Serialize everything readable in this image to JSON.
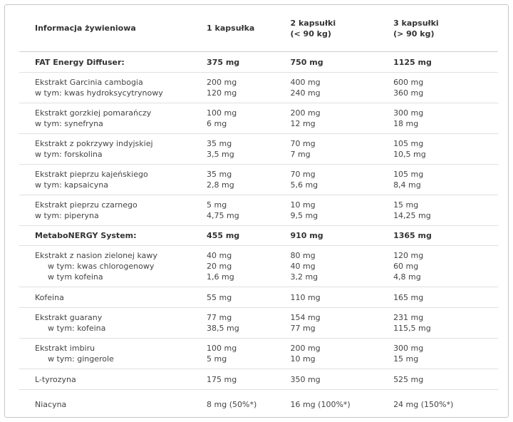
{
  "table": {
    "header": [
      [
        "Informacja żywieniowa"
      ],
      [
        "1 kapsułka"
      ],
      [
        "2 kapsułki",
        "(< 90 kg)"
      ],
      [
        "3 kapsułki",
        "(> 90 kg)"
      ]
    ],
    "rows": [
      {
        "bold": true,
        "cells": [
          [
            "FAT Energy Diffuser:"
          ],
          [
            "375 mg"
          ],
          [
            "750  mg"
          ],
          [
            "1125 mg"
          ]
        ]
      },
      {
        "cells": [
          [
            "Ekstrakt Garcinia cambogia",
            "w tym: kwas hydroksycytrynowy"
          ],
          [
            "200 mg",
            "120 mg"
          ],
          [
            "400 mg",
            "240 mg"
          ],
          [
            "600 mg",
            "360 mg"
          ]
        ]
      },
      {
        "cells": [
          [
            "Ekstrakt gorzkiej pomarańczy",
            "w tym: synefryna"
          ],
          [
            "100 mg",
            "6 mg"
          ],
          [
            "200 mg",
            "12 mg"
          ],
          [
            "300 mg",
            "18 mg"
          ]
        ]
      },
      {
        "cells": [
          [
            "Ekstrakt z pokrzywy indyjskiej",
            "w tym: forskolina"
          ],
          [
            "35 mg",
            "3,5 mg"
          ],
          [
            "70 mg",
            "7 mg"
          ],
          [
            "105 mg",
            "10,5 mg"
          ]
        ]
      },
      {
        "cells": [
          [
            "Ekstrakt pieprzu kajeńskiego",
            "w tym: kapsaicyna"
          ],
          [
            "35 mg",
            "2,8 mg"
          ],
          [
            "70 mg",
            "5,6 mg"
          ],
          [
            "105 mg",
            "8,4 mg"
          ]
        ]
      },
      {
        "cells": [
          [
            "Ekstrakt pieprzu czarnego",
            "w tym: piperyna"
          ],
          [
            "5 mg",
            "4,75 mg"
          ],
          [
            "10 mg",
            "9,5 mg"
          ],
          [
            "15 mg",
            "14,25 mg"
          ]
        ]
      },
      {
        "bold": true,
        "cells": [
          [
            "MetaboNERGY System:"
          ],
          [
            "455 mg"
          ],
          [
            "910 mg"
          ],
          [
            "1365 mg"
          ]
        ]
      },
      {
        "indent": true,
        "cells": [
          [
            "Ekstrakt z nasion zielonej kawy",
            "w tym: kwas chlorogenowy",
            "w tym kofeina"
          ],
          [
            "40 mg",
            "20 mg",
            "1,6 mg"
          ],
          [
            "80 mg",
            "40 mg",
            "3,2 mg"
          ],
          [
            "120 mg",
            "60 mg",
            "4,8 mg"
          ]
        ]
      },
      {
        "cells": [
          [
            "Kofeina"
          ],
          [
            "55 mg"
          ],
          [
            "110 mg"
          ],
          [
            "165 mg"
          ]
        ]
      },
      {
        "indent": true,
        "cells": [
          [
            "Ekstrakt guarany",
            "w tym: kofeina"
          ],
          [
            "77 mg",
            "38,5 mg"
          ],
          [
            "154 mg",
            "77 mg"
          ],
          [
            "231 mg",
            "115,5 mg"
          ]
        ]
      },
      {
        "indent": true,
        "cells": [
          [
            "Ekstrakt imbiru",
            "w tym: gingerole"
          ],
          [
            "100 mg",
            "5 mg"
          ],
          [
            "200 mg",
            "10 mg"
          ],
          [
            "300 mg",
            "15 mg"
          ]
        ]
      },
      {
        "cells": [
          [
            "L-tyrozyna"
          ],
          [
            "175 mg"
          ],
          [
            "350 mg"
          ],
          [
            "525 mg"
          ]
        ]
      },
      {
        "cells": [
          [
            "Niacyna"
          ],
          [
            "8 mg (50%*)"
          ],
          [
            "16 mg (100%*)"
          ],
          [
            "24 mg (150%*)"
          ]
        ]
      }
    ]
  }
}
